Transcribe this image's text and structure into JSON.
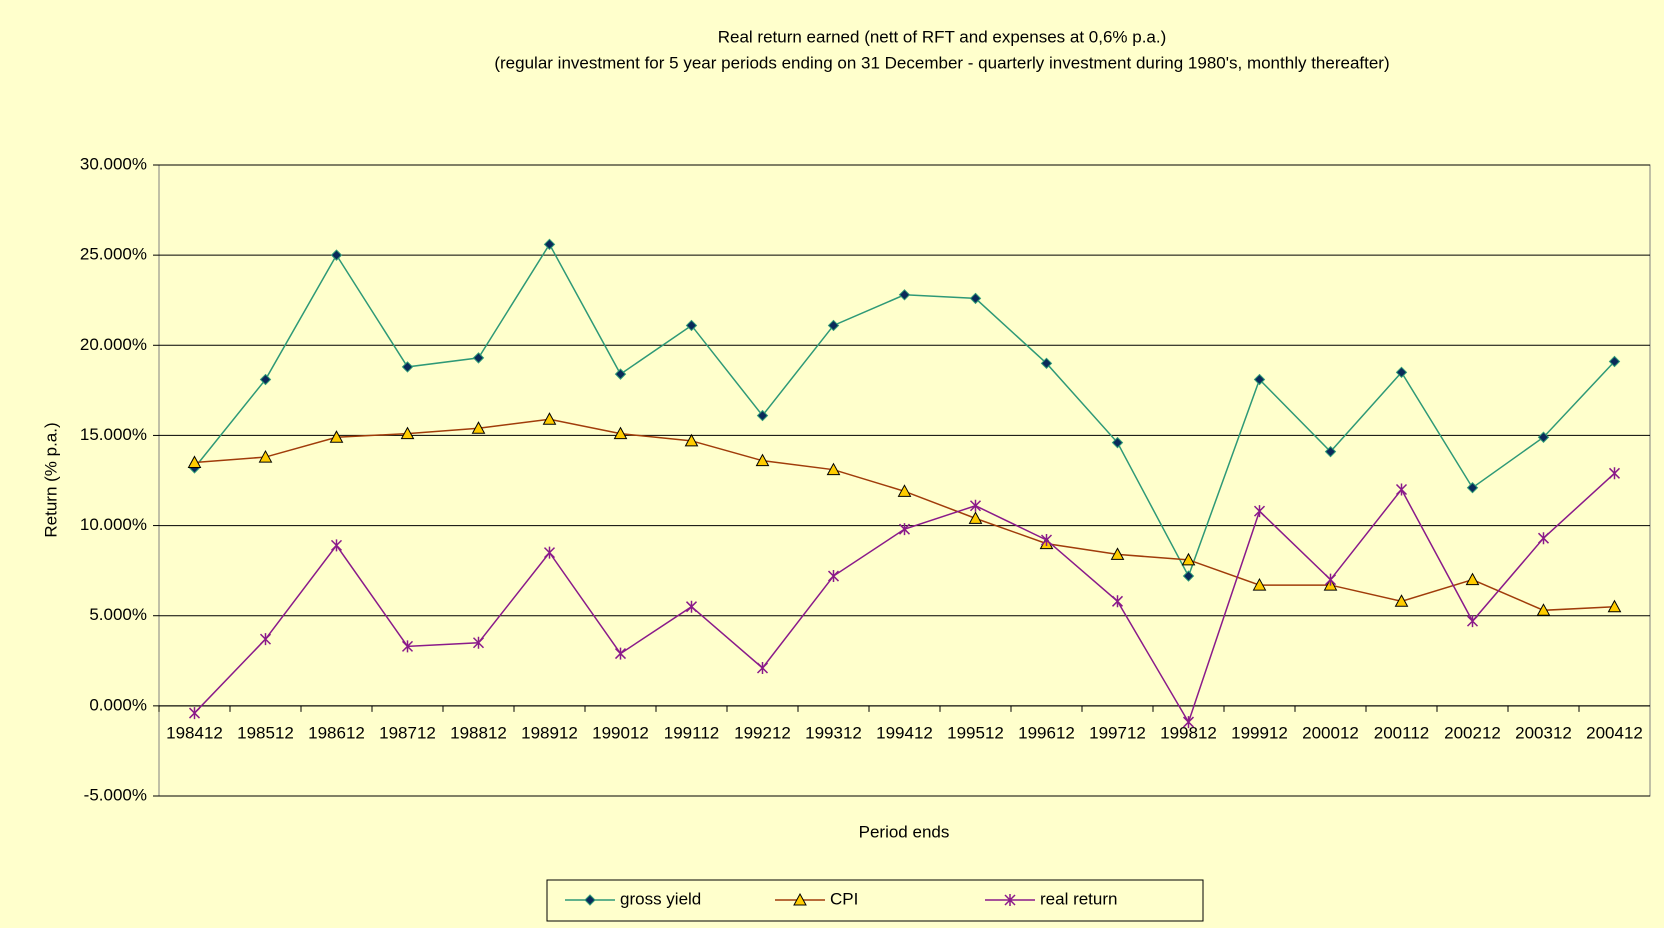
{
  "chart_data": {
    "type": "line",
    "title": "Real return earned (nett of RFT and expenses at 0,6% p.a.)",
    "subtitle": "(regular investment for 5 year periods ending on 31 December - quarterly investment during 1980's, monthly thereafter)",
    "x_label": "Period ends",
    "y_label": "Return (% p.a.)",
    "categories": [
      "198412",
      "198512",
      "198612",
      "198712",
      "198812",
      "198912",
      "199012",
      "199112",
      "199212",
      "199312",
      "199412",
      "199512",
      "199612",
      "199712",
      "199812",
      "199912",
      "200012",
      "200112",
      "200212",
      "200312",
      "200412"
    ],
    "series": [
      {
        "name": "gross yield",
        "color": "#2e9977",
        "marker": "diamond",
        "values": [
          13.2,
          18.1,
          25.0,
          18.8,
          19.3,
          25.6,
          18.4,
          21.1,
          16.1,
          21.1,
          22.8,
          22.6,
          19.0,
          14.6,
          7.2,
          18.1,
          14.1,
          18.5,
          12.1,
          14.9,
          19.1
        ]
      },
      {
        "name": "CPI",
        "color": "#a03c0a",
        "marker": "triangle",
        "values": [
          13.5,
          13.8,
          14.9,
          15.1,
          15.4,
          15.9,
          15.1,
          14.7,
          13.6,
          13.1,
          11.9,
          10.4,
          9.0,
          8.4,
          8.1,
          6.7,
          6.7,
          5.8,
          7.0,
          5.3,
          5.5
        ]
      },
      {
        "name": "real return",
        "color": "#8a1a8a",
        "marker": "star",
        "values": [
          -0.4,
          3.7,
          8.9,
          3.3,
          3.5,
          8.5,
          2.9,
          5.5,
          2.1,
          7.2,
          9.8,
          11.1,
          9.2,
          5.8,
          -0.9,
          10.8,
          7.0,
          12.0,
          4.7,
          9.3,
          12.9
        ]
      }
    ],
    "ylim": [
      -5,
      30
    ],
    "yticks": [
      {
        "value": -5,
        "label": "-5.000%"
      },
      {
        "value": 0,
        "label": "0.000%"
      },
      {
        "value": 5,
        "label": "5.000%"
      },
      {
        "value": 10,
        "label": "10.000%"
      },
      {
        "value": 15,
        "label": "15.000%"
      },
      {
        "value": 20,
        "label": "20.000%"
      },
      {
        "value": 25,
        "label": "25.000%"
      },
      {
        "value": 30,
        "label": "30.000%"
      }
    ],
    "grid": true,
    "legend": "bottom"
  }
}
